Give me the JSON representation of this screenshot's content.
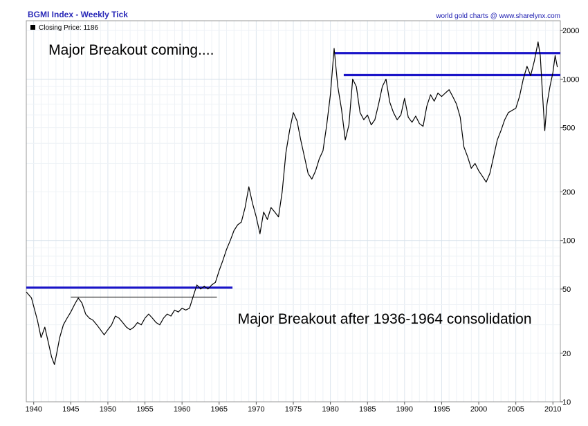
{
  "chart_data": {
    "type": "line",
    "title": "BGMI Index - Weekly Tick",
    "credit": "world gold charts @ www.sharelynx.com",
    "legend": {
      "label": "Closing Price:",
      "value": "1186",
      "color": "#000000"
    },
    "x_axis": {
      "min": 1939,
      "max": 2011,
      "ticks": [
        1940,
        1945,
        1950,
        1955,
        1960,
        1965,
        1970,
        1975,
        1980,
        1985,
        1990,
        1995,
        2000,
        2005,
        2010
      ]
    },
    "y_axis": {
      "scale": "log",
      "min": 10,
      "max": 2300,
      "ticks": [
        10,
        20,
        50,
        100,
        200,
        500,
        1000,
        2000
      ],
      "position": "right"
    },
    "series": [
      {
        "name": "Closing Price",
        "color": "#000000",
        "points": [
          [
            1939.0,
            48
          ],
          [
            1939.7,
            44
          ],
          [
            1940.5,
            32
          ],
          [
            1941.0,
            25
          ],
          [
            1941.5,
            29
          ],
          [
            1942.0,
            23
          ],
          [
            1942.4,
            19
          ],
          [
            1942.8,
            17
          ],
          [
            1943.1,
            20
          ],
          [
            1943.5,
            25
          ],
          [
            1944.0,
            30
          ],
          [
            1944.5,
            33
          ],
          [
            1945.0,
            36
          ],
          [
            1945.5,
            40
          ],
          [
            1946.0,
            44
          ],
          [
            1946.5,
            41
          ],
          [
            1947.0,
            35
          ],
          [
            1947.5,
            33
          ],
          [
            1948.0,
            32
          ],
          [
            1948.5,
            30
          ],
          [
            1949.0,
            28
          ],
          [
            1949.5,
            26
          ],
          [
            1950.0,
            28
          ],
          [
            1950.5,
            30
          ],
          [
            1951.0,
            34
          ],
          [
            1951.5,
            33
          ],
          [
            1952.0,
            31
          ],
          [
            1952.5,
            29
          ],
          [
            1953.0,
            28
          ],
          [
            1953.5,
            29
          ],
          [
            1954.0,
            31
          ],
          [
            1954.5,
            30
          ],
          [
            1955.0,
            33
          ],
          [
            1955.5,
            35
          ],
          [
            1956.0,
            33
          ],
          [
            1956.5,
            31
          ],
          [
            1957.0,
            30
          ],
          [
            1957.5,
            33
          ],
          [
            1958.0,
            35
          ],
          [
            1958.5,
            34
          ],
          [
            1959.0,
            37
          ],
          [
            1959.5,
            36
          ],
          [
            1960.0,
            38
          ],
          [
            1960.5,
            37
          ],
          [
            1961.0,
            38
          ],
          [
            1961.5,
            45
          ],
          [
            1962.0,
            53
          ],
          [
            1962.5,
            50
          ],
          [
            1963.0,
            52
          ],
          [
            1963.5,
            50
          ],
          [
            1964.0,
            53
          ],
          [
            1964.5,
            55
          ],
          [
            1965.0,
            65
          ],
          [
            1965.5,
            75
          ],
          [
            1966.0,
            88
          ],
          [
            1966.5,
            100
          ],
          [
            1967.0,
            115
          ],
          [
            1967.5,
            125
          ],
          [
            1968.0,
            130
          ],
          [
            1968.5,
            160
          ],
          [
            1969.0,
            215
          ],
          [
            1969.5,
            170
          ],
          [
            1970.0,
            140
          ],
          [
            1970.5,
            110
          ],
          [
            1971.0,
            150
          ],
          [
            1971.5,
            135
          ],
          [
            1972.0,
            160
          ],
          [
            1972.5,
            150
          ],
          [
            1973.0,
            140
          ],
          [
            1973.5,
            200
          ],
          [
            1974.0,
            350
          ],
          [
            1974.5,
            480
          ],
          [
            1975.0,
            620
          ],
          [
            1975.5,
            550
          ],
          [
            1976.0,
            420
          ],
          [
            1976.5,
            330
          ],
          [
            1977.0,
            260
          ],
          [
            1977.5,
            240
          ],
          [
            1978.0,
            270
          ],
          [
            1978.5,
            320
          ],
          [
            1979.0,
            360
          ],
          [
            1979.5,
            520
          ],
          [
            1980.0,
            800
          ],
          [
            1980.5,
            1550
          ],
          [
            1981.0,
            900
          ],
          [
            1981.5,
            650
          ],
          [
            1982.0,
            420
          ],
          [
            1982.5,
            520
          ],
          [
            1983.0,
            1000
          ],
          [
            1983.5,
            900
          ],
          [
            1984.0,
            620
          ],
          [
            1984.5,
            560
          ],
          [
            1985.0,
            600
          ],
          [
            1985.5,
            520
          ],
          [
            1986.0,
            560
          ],
          [
            1986.5,
            700
          ],
          [
            1987.0,
            900
          ],
          [
            1987.5,
            1000
          ],
          [
            1988.0,
            720
          ],
          [
            1988.5,
            620
          ],
          [
            1989.0,
            560
          ],
          [
            1989.5,
            600
          ],
          [
            1990.0,
            760
          ],
          [
            1990.5,
            580
          ],
          [
            1991.0,
            540
          ],
          [
            1991.5,
            590
          ],
          [
            1992.0,
            530
          ],
          [
            1992.5,
            510
          ],
          [
            1993.0,
            680
          ],
          [
            1993.5,
            800
          ],
          [
            1994.0,
            730
          ],
          [
            1994.5,
            820
          ],
          [
            1995.0,
            780
          ],
          [
            1995.5,
            820
          ],
          [
            1996.0,
            860
          ],
          [
            1996.5,
            780
          ],
          [
            1997.0,
            700
          ],
          [
            1997.5,
            580
          ],
          [
            1998.0,
            380
          ],
          [
            1998.5,
            330
          ],
          [
            1999.0,
            280
          ],
          [
            1999.5,
            300
          ],
          [
            2000.0,
            270
          ],
          [
            2000.5,
            250
          ],
          [
            2001.0,
            230
          ],
          [
            2001.5,
            260
          ],
          [
            2002.0,
            330
          ],
          [
            2002.5,
            420
          ],
          [
            2003.0,
            480
          ],
          [
            2003.5,
            560
          ],
          [
            2004.0,
            620
          ],
          [
            2004.5,
            640
          ],
          [
            2005.0,
            660
          ],
          [
            2005.5,
            780
          ],
          [
            2006.0,
            1000
          ],
          [
            2006.5,
            1200
          ],
          [
            2007.0,
            1050
          ],
          [
            2007.5,
            1300
          ],
          [
            2008.0,
            1700
          ],
          [
            2008.3,
            1400
          ],
          [
            2008.6,
            800
          ],
          [
            2008.9,
            480
          ],
          [
            2009.2,
            700
          ],
          [
            2009.6,
            900
          ],
          [
            2010.0,
            1100
          ],
          [
            2010.3,
            1400
          ],
          [
            2010.6,
            1186
          ]
        ]
      }
    ],
    "reference_lines": [
      {
        "level": 51,
        "from": 1939.0,
        "to": 1966.8,
        "color": "#1a14c8",
        "weight": "bold"
      },
      {
        "level": 44.5,
        "from": 1945.0,
        "to": 1964.7,
        "color": "#000000",
        "weight": "thin"
      },
      {
        "level": 1450,
        "from": 1980.6,
        "to": 2011.0,
        "color": "#1a14c8",
        "weight": "bold"
      },
      {
        "level": 1060,
        "from": 1981.8,
        "to": 2011.0,
        "color": "#1a14c8",
        "weight": "bold"
      }
    ],
    "annotations": [
      {
        "text": "Major Breakout coming....",
        "anchor_x": 1942.0,
        "anchor_y": 1420
      },
      {
        "text": "Major Breakout after 1936-1964 consolidation",
        "anchor_x": 1967.5,
        "anchor_y": 30.5
      }
    ],
    "grid": true
  }
}
